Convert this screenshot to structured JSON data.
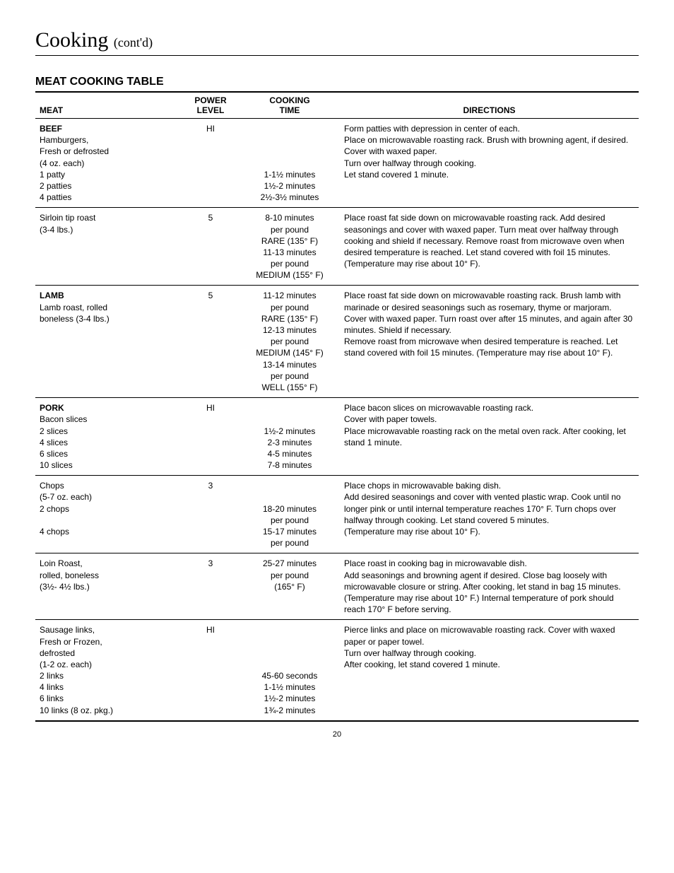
{
  "page": {
    "title_main": "Cooking",
    "title_contd": "(cont'd)",
    "section_heading": "MEAT COOKING TABLE",
    "page_number": "20"
  },
  "headers": {
    "meat": "MEAT",
    "power_l1": "POWER",
    "power_l2": "LEVEL",
    "time_l1": "COOKING",
    "time_l2": "TIME",
    "directions": "DIRECTIONS"
  },
  "rows": [
    {
      "meat_bold": "BEEF",
      "meat_rest": "Hamburgers,\nFresh or defrosted\n(4 oz. each)\n1 patty\n2 patties\n4 patties",
      "power": "HI",
      "time_pre": "\n\n\n\n",
      "time": "1-1½ minutes\n1½-2 minutes\n2½-3½ minutes",
      "directions": "Form patties with depression in center of each.\nPlace on microwavable roasting rack. Brush with browning agent, if desired. Cover with waxed paper.\nTurn over halfway through cooking.\nLet stand covered 1 minute."
    },
    {
      "meat_bold": "",
      "meat_rest": "Sirloin tip roast\n(3-4 lbs.)",
      "power": "5",
      "time_pre": "",
      "time": "8-10 minutes\nper pound\nRARE (135° F)\n11-13 minutes\nper pound\nMEDIUM (155° F)",
      "directions": "Place roast fat side down on microwavable roasting rack. Add desired seasonings and cover with waxed paper. Turn meat over halfway through cooking and shield if necessary. Remove roast from microwave oven when desired temperature is reached. Let stand covered with foil 15 minutes. (Temperature may rise about 10° F)."
    },
    {
      "meat_bold": "LAMB",
      "meat_rest": "Lamb roast, rolled\nboneless (3-4 lbs.)",
      "power": "5",
      "time_pre": "",
      "time": "11-12 minutes\nper pound\nRARE (135° F)\n12-13 minutes\nper pound\nMEDIUM (145° F)\n13-14 minutes\nper pound\nWELL (155° F)",
      "directions": "Place roast fat side down on microwavable roasting rack. Brush lamb with marinade or desired seasonings such as rosemary, thyme or marjoram. Cover with waxed paper. Turn roast over after 15 minutes, and again after 30 minutes. Shield if necessary.\nRemove roast from microwave when desired temperature is reached. Let stand covered with foil 15 minutes. (Temperature may rise about 10° F)."
    },
    {
      "meat_bold": "PORK",
      "meat_rest": "Bacon slices\n2 slices\n4 slices\n6 slices\n10 slices",
      "power": "HI",
      "time_pre": "\n\n",
      "time": "1½-2 minutes\n2-3 minutes\n4-5 minutes\n7-8 minutes",
      "directions": "Place bacon slices on microwavable roasting rack.\nCover with paper towels.\nPlace microwavable roasting rack on the metal oven rack. After cooking, let stand 1 minute."
    },
    {
      "meat_bold": "",
      "meat_rest": "Chops\n(5-7 oz. each)\n2 chops\n\n4 chops",
      "power": "3",
      "time_pre": "\n\n",
      "time": "18-20 minutes\nper pound\n15-17 minutes\nper pound",
      "directions": "Place chops in microwavable baking dish.\nAdd desired seasonings and cover with vented plastic wrap. Cook until no longer pink or until internal temperature reaches 170° F. Turn chops over halfway through cooking. Let stand covered 5 minutes.\n(Temperature may rise about 10° F)."
    },
    {
      "meat_bold": "",
      "meat_rest": "Loin Roast,\nrolled, boneless\n(3½- 4½ lbs.)",
      "power": "3",
      "time_pre": "",
      "time": "25-27 minutes\nper pound\n(165° F)",
      "directions": "Place roast in cooking bag in microwavable dish.\nAdd seasonings and browning agent if desired. Close bag loosely with microwavable closure or string. After cooking, let stand in bag 15 minutes. (Temperature may rise about 10° F.) Internal temperature of pork should reach 170° F before serving."
    },
    {
      "meat_bold": "",
      "meat_rest": "Sausage links,\nFresh or Frozen,\ndefrosted\n(1-2 oz. each)\n2 links\n4 links\n6 links\n10 links (8 oz. pkg.)",
      "power": "HI",
      "time_pre": "\n\n\n\n",
      "time": "45-60 seconds\n1-1½ minutes\n1½-2 minutes\n1¾-2 minutes",
      "directions": "Pierce links and place on microwavable roasting rack. Cover with waxed paper or paper towel.\nTurn over halfway through cooking.\nAfter cooking, let stand covered 1 minute."
    }
  ]
}
